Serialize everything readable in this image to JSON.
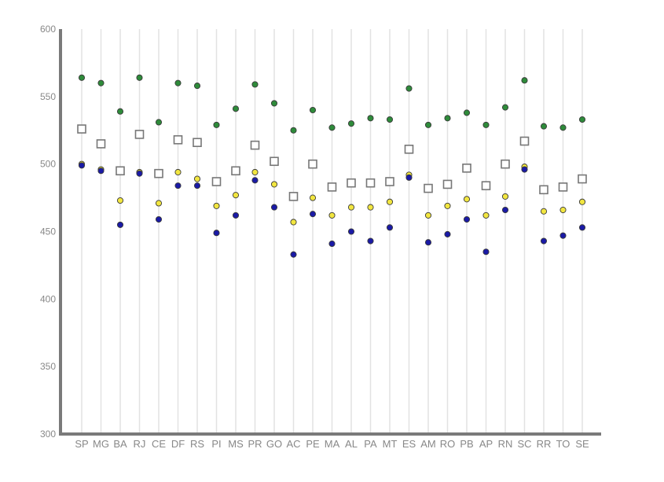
{
  "chart_data": {
    "type": "scatter",
    "title": "",
    "xlabel": "",
    "ylabel": "",
    "ylim": [
      300,
      600
    ],
    "yticks": [
      300,
      350,
      400,
      450,
      500,
      550,
      600
    ],
    "grid": "vertical",
    "legend": "none",
    "categories": [
      "SP",
      "MG",
      "BA",
      "RJ",
      "CE",
      "DF",
      "RS",
      "PI",
      "MS",
      "PR",
      "GO",
      "AC",
      "PE",
      "MA",
      "AL",
      "PA",
      "MT",
      "ES",
      "AM",
      "RO",
      "PB",
      "AP",
      "RN",
      "SC",
      "RR",
      "TO",
      "SE"
    ],
    "series": [
      {
        "marker": "circle",
        "color": "#2e8b3a",
        "values": [
          564,
          560,
          539,
          564,
          531,
          560,
          558,
          529,
          541,
          559,
          545,
          525,
          540,
          527,
          530,
          534,
          533,
          556,
          529,
          534,
          538,
          529,
          542,
          562,
          528,
          527,
          533
        ]
      },
      {
        "marker": "square",
        "color": "#ffffff",
        "values": [
          526,
          515,
          495,
          522,
          493,
          518,
          516,
          487,
          495,
          514,
          502,
          476,
          500,
          483,
          486,
          486,
          487,
          511,
          482,
          485,
          497,
          484,
          500,
          517,
          481,
          483,
          489
        ]
      },
      {
        "marker": "circle",
        "color": "#f2e640",
        "values": [
          500,
          496,
          473,
          494,
          471,
          494,
          489,
          469,
          477,
          494,
          485,
          457,
          475,
          462,
          468,
          468,
          472,
          492,
          462,
          469,
          474,
          462,
          476,
          498,
          465,
          466,
          472
        ]
      },
      {
        "marker": "circle",
        "color": "#1a1aa6",
        "values": [
          499,
          495,
          455,
          493,
          459,
          484,
          484,
          449,
          462,
          488,
          468,
          433,
          463,
          441,
          450,
          443,
          453,
          490,
          442,
          448,
          459,
          435,
          466,
          496,
          443,
          447,
          453
        ]
      }
    ]
  }
}
